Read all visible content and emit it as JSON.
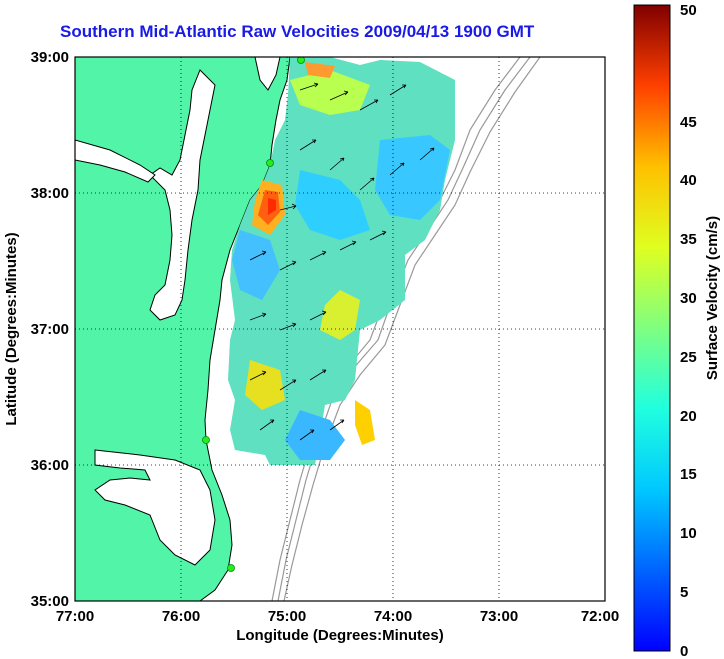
{
  "title": "Southern Mid-Atlantic Raw Velocities 2009/04/13 1900 GMT",
  "xlabel": "Longitude (Degrees:Minutes)",
  "ylabel": "Latitude (Degrees:Minutes)",
  "colorbar_label": "Surface Velocity (cm/s)",
  "x_ticks": [
    "77:00",
    "76:00",
    "75:00",
    "74:00",
    "73:00",
    "72:00"
  ],
  "y_ticks": [
    "39:00",
    "38:00",
    "37:00",
    "36:00",
    "35:00"
  ],
  "colorbar_ticks": [
    "0",
    "5",
    "10",
    "15",
    "20",
    "25",
    "30",
    "35",
    "40",
    "45",
    "50"
  ],
  "colors": {
    "land": "#52f5a8",
    "coast": "#000000",
    "bathymetry": "#999999",
    "station": "#22ee22",
    "arrow": "#000000"
  },
  "chart_data": {
    "type": "heatmap",
    "title": "Southern Mid-Atlantic Raw Velocities 2009/04/13 1900 GMT",
    "xlabel": "Longitude (Degrees:Minutes)",
    "ylabel": "Latitude (Degrees:Minutes)",
    "xlim": [
      -77,
      -72
    ],
    "ylim": [
      35,
      39
    ],
    "colorbar": {
      "label": "Surface Velocity (cm/s)",
      "range": [
        0,
        50
      ],
      "colormap": "jet"
    },
    "grid": true
  }
}
